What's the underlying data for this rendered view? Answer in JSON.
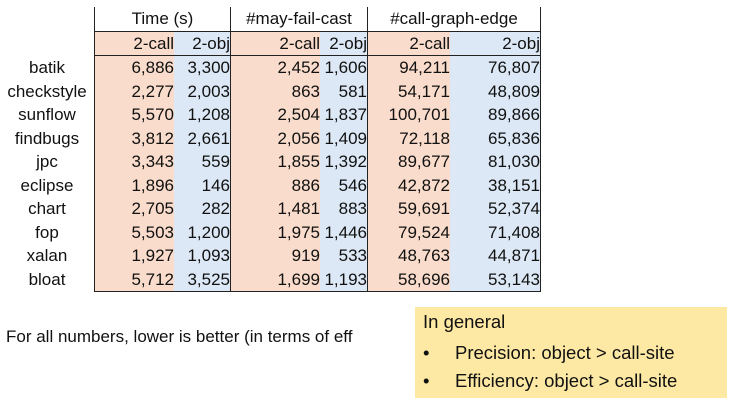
{
  "table": {
    "group_headers": [
      "Time (s)",
      "#may-fail-cast",
      "#call-graph-edge"
    ],
    "sub_headers": [
      "2-call",
      "2-obj",
      "2-call",
      "2-obj",
      "2-call",
      "2-obj"
    ],
    "rows": [
      {
        "bench": "batik",
        "values": [
          "6,886",
          "3,300",
          "2,452",
          "1,606",
          "94,211",
          "76,807"
        ]
      },
      {
        "bench": "checkstyle",
        "values": [
          "2,277",
          "2,003",
          "863",
          "581",
          "54,171",
          "48,809"
        ]
      },
      {
        "bench": "sunflow",
        "values": [
          "5,570",
          "1,208",
          "2,504",
          "1,837",
          "100,701",
          "89,866"
        ]
      },
      {
        "bench": "findbugs",
        "values": [
          "3,812",
          "2,661",
          "2,056",
          "1,409",
          "72,118",
          "65,836"
        ]
      },
      {
        "bench": "jpc",
        "values": [
          "3,343",
          "559",
          "1,855",
          "1,392",
          "89,677",
          "81,030"
        ]
      },
      {
        "bench": "eclipse",
        "values": [
          "1,896",
          "146",
          "886",
          "546",
          "42,872",
          "38,151"
        ]
      },
      {
        "bench": "chart",
        "values": [
          "2,705",
          "282",
          "1,481",
          "883",
          "59,691",
          "52,374"
        ]
      },
      {
        "bench": "fop",
        "values": [
          "5,503",
          "1,200",
          "1,975",
          "1,446",
          "79,524",
          "71,408"
        ]
      },
      {
        "bench": "xalan",
        "values": [
          "1,927",
          "1,093",
          "919",
          "533",
          "48,763",
          "44,871"
        ]
      },
      {
        "bench": "bloat",
        "values": [
          "5,712",
          "3,525",
          "1,699",
          "1,193",
          "58,696",
          "53,143"
        ]
      }
    ]
  },
  "footnote": "For all numbers, lower is better (in terms of eff",
  "summary": {
    "title": "In general",
    "bullets": [
      "Precision: object > call-site",
      "Efficiency: object > call-site"
    ],
    "bullet_glyph": "•"
  },
  "colors": {
    "call_site_column": "#f9dccb",
    "object_column": "#dce8f5",
    "summary_background": "#fde9a4"
  }
}
